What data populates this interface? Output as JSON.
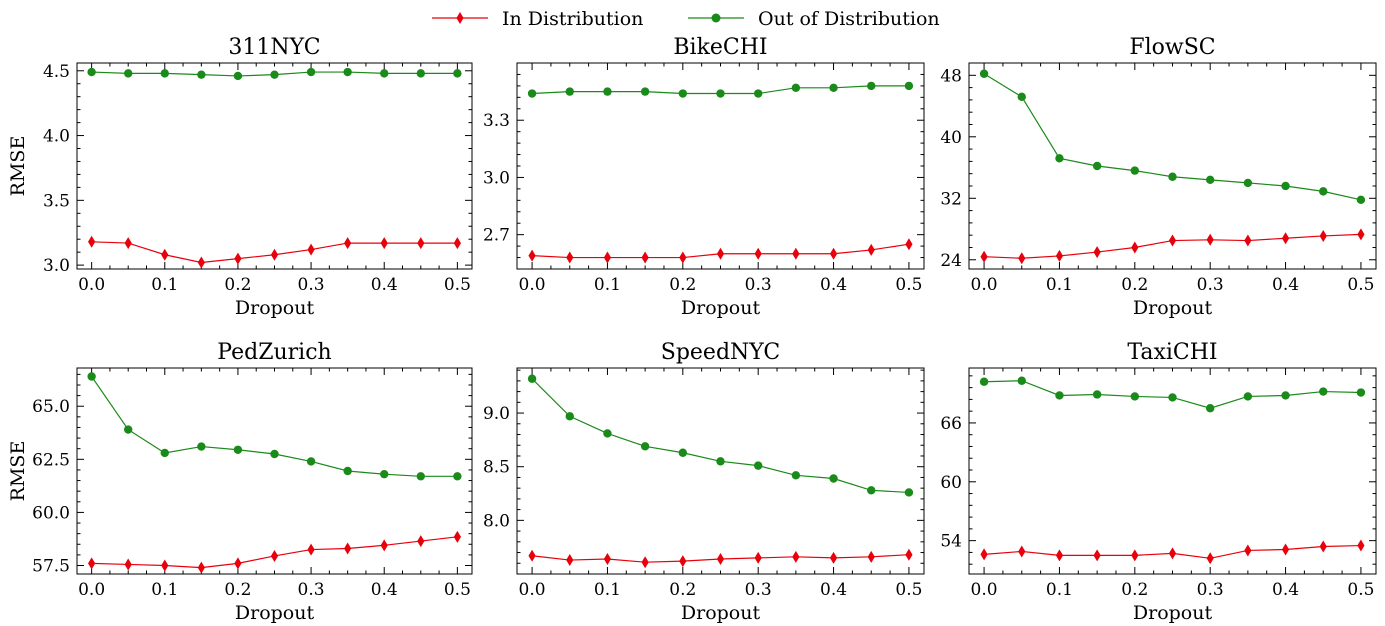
{
  "legend": {
    "in_label": "In Distribution",
    "out_label": "Out of Distribution",
    "in_color": "#e8000b",
    "out_color": "#1a8a1a",
    "placement": "top-center"
  },
  "chart_data": [
    {
      "type": "line",
      "title": "311NYC",
      "xlabel": "Dropout",
      "ylabel": "RMSE",
      "x": [
        0.0,
        0.05,
        0.1,
        0.15,
        0.2,
        0.25,
        0.3,
        0.35,
        0.4,
        0.45,
        0.5
      ],
      "xlim": [
        -0.02,
        0.52
      ],
      "ylim": [
        2.97,
        4.56
      ],
      "xticks": [
        "0.0",
        "0.1",
        "0.2",
        "0.3",
        "0.4",
        "0.5"
      ],
      "yticks": [
        "3.0",
        "3.5",
        "4.0",
        "4.5"
      ],
      "series": [
        {
          "name": "In Distribution",
          "values": [
            3.18,
            3.17,
            3.08,
            3.02,
            3.05,
            3.08,
            3.12,
            3.17,
            3.17,
            3.17,
            3.17
          ]
        },
        {
          "name": "Out of Distribution",
          "values": [
            4.49,
            4.48,
            4.48,
            4.47,
            4.46,
            4.47,
            4.49,
            4.49,
            4.48,
            4.48,
            4.48
          ]
        }
      ]
    },
    {
      "type": "line",
      "title": "BikeCHI",
      "xlabel": "Dropout",
      "ylabel": "",
      "x": [
        0.0,
        0.05,
        0.1,
        0.15,
        0.2,
        0.25,
        0.3,
        0.35,
        0.4,
        0.45,
        0.5
      ],
      "xlim": [
        -0.02,
        0.52
      ],
      "ylim": [
        2.52,
        3.6
      ],
      "xticks": [
        "0.0",
        "0.1",
        "0.2",
        "0.3",
        "0.4",
        "0.5"
      ],
      "yticks": [
        "2.7",
        "3.0",
        "3.3"
      ],
      "series": [
        {
          "name": "In Distribution",
          "values": [
            2.59,
            2.58,
            2.58,
            2.58,
            2.58,
            2.6,
            2.6,
            2.6,
            2.6,
            2.62,
            2.65
          ]
        },
        {
          "name": "Out of Distribution",
          "values": [
            3.44,
            3.45,
            3.45,
            3.45,
            3.44,
            3.44,
            3.44,
            3.47,
            3.47,
            3.48,
            3.48
          ]
        }
      ]
    },
    {
      "type": "line",
      "title": "FlowSC",
      "xlabel": "Dropout",
      "ylabel": "",
      "x": [
        0.0,
        0.05,
        0.1,
        0.15,
        0.2,
        0.25,
        0.3,
        0.35,
        0.4,
        0.45,
        0.5
      ],
      "xlim": [
        -0.02,
        0.52
      ],
      "ylim": [
        22.8,
        49.6
      ],
      "xticks": [
        "0.0",
        "0.1",
        "0.2",
        "0.3",
        "0.4",
        "0.5"
      ],
      "yticks": [
        "24",
        "32",
        "40",
        "48"
      ],
      "series": [
        {
          "name": "In Distribution",
          "values": [
            24.4,
            24.2,
            24.5,
            25.0,
            25.6,
            26.5,
            26.6,
            26.5,
            26.8,
            27.1,
            27.3
          ]
        },
        {
          "name": "Out of Distribution",
          "values": [
            48.2,
            45.2,
            37.2,
            36.2,
            35.6,
            34.8,
            34.4,
            34.0,
            33.6,
            32.9,
            31.8
          ]
        }
      ]
    },
    {
      "type": "line",
      "title": "PedZurich",
      "xlabel": "Dropout",
      "ylabel": "RMSE",
      "x": [
        0.0,
        0.05,
        0.1,
        0.15,
        0.2,
        0.25,
        0.3,
        0.35,
        0.4,
        0.45,
        0.5
      ],
      "xlim": [
        -0.02,
        0.52
      ],
      "ylim": [
        57.1,
        66.8
      ],
      "xticks": [
        "0.0",
        "0.1",
        "0.2",
        "0.3",
        "0.4",
        "0.5"
      ],
      "yticks": [
        "57.5",
        "60.0",
        "62.5",
        "65.0"
      ],
      "series": [
        {
          "name": "In Distribution",
          "values": [
            57.6,
            57.55,
            57.5,
            57.4,
            57.6,
            57.95,
            58.25,
            58.3,
            58.45,
            58.65,
            58.85
          ]
        },
        {
          "name": "Out of Distribution",
          "values": [
            66.4,
            63.9,
            62.8,
            63.1,
            62.95,
            62.75,
            62.4,
            61.95,
            61.8,
            61.7,
            61.7
          ]
        }
      ]
    },
    {
      "type": "line",
      "title": "SpeedNYC",
      "xlabel": "Dropout",
      "ylabel": "",
      "x": [
        0.0,
        0.05,
        0.1,
        0.15,
        0.2,
        0.25,
        0.3,
        0.35,
        0.4,
        0.45,
        0.5
      ],
      "xlim": [
        -0.02,
        0.52
      ],
      "ylim": [
        7.5,
        9.42
      ],
      "xticks": [
        "0.0",
        "0.1",
        "0.2",
        "0.3",
        "0.4",
        "0.5"
      ],
      "yticks": [
        "8.0",
        "8.5",
        "9.0"
      ],
      "series": [
        {
          "name": "In Distribution",
          "values": [
            7.67,
            7.63,
            7.64,
            7.61,
            7.62,
            7.64,
            7.65,
            7.66,
            7.65,
            7.66,
            7.68
          ]
        },
        {
          "name": "Out of Distribution",
          "values": [
            9.32,
            8.97,
            8.81,
            8.69,
            8.63,
            8.55,
            8.51,
            8.42,
            8.39,
            8.28,
            8.26
          ]
        }
      ]
    },
    {
      "type": "line",
      "title": "TaxiCHI",
      "xlabel": "Dropout",
      "ylabel": "",
      "x": [
        0.0,
        0.05,
        0.1,
        0.15,
        0.2,
        0.25,
        0.3,
        0.35,
        0.4,
        0.45,
        0.5
      ],
      "xlim": [
        -0.02,
        0.52
      ],
      "ylim": [
        50.6,
        71.6
      ],
      "xticks": [
        "0.0",
        "0.1",
        "0.2",
        "0.3",
        "0.4",
        "0.5"
      ],
      "yticks": [
        "54",
        "60",
        "66"
      ],
      "series": [
        {
          "name": "In Distribution",
          "values": [
            52.6,
            52.9,
            52.5,
            52.5,
            52.5,
            52.7,
            52.2,
            53.0,
            53.1,
            53.4,
            53.5
          ]
        },
        {
          "name": "Out of Distribution",
          "values": [
            70.2,
            70.3,
            68.8,
            68.9,
            68.7,
            68.6,
            67.5,
            68.7,
            68.8,
            69.2,
            69.1
          ]
        }
      ]
    }
  ]
}
